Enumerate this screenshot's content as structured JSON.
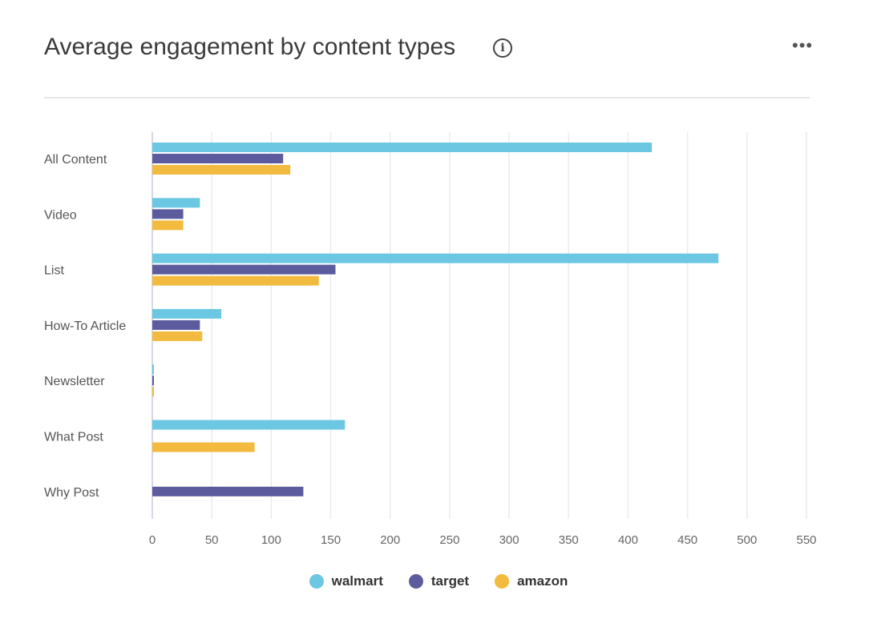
{
  "header": {
    "title": "Average engagement by content types",
    "info_icon": "info-icon",
    "more_icon": "ellipsis-icon",
    "more_label": "•••",
    "info_label": "i"
  },
  "chart_data": {
    "type": "bar",
    "orientation": "horizontal",
    "title": "Average engagement by content types",
    "categories": [
      "All Content",
      "Video",
      "List",
      "How-To Article",
      "Newsletter",
      "What Post",
      "Why Post"
    ],
    "series": [
      {
        "name": "walmart",
        "color": "#6cc7e2",
        "values": [
          420,
          40,
          476,
          58,
          1,
          162,
          0
        ]
      },
      {
        "name": "target",
        "color": "#5c5b9e",
        "values": [
          110,
          26,
          154,
          40,
          1,
          0,
          127
        ]
      },
      {
        "name": "amazon",
        "color": "#f2bb3f",
        "values": [
          116,
          26,
          140,
          42,
          1,
          86,
          0
        ]
      }
    ],
    "xlim": [
      0,
      550
    ],
    "xticks": [
      "0",
      "50",
      "100",
      "150",
      "200",
      "250",
      "300",
      "350",
      "400",
      "450",
      "500",
      "550"
    ],
    "grid": true,
    "legend": "bottom-center"
  }
}
